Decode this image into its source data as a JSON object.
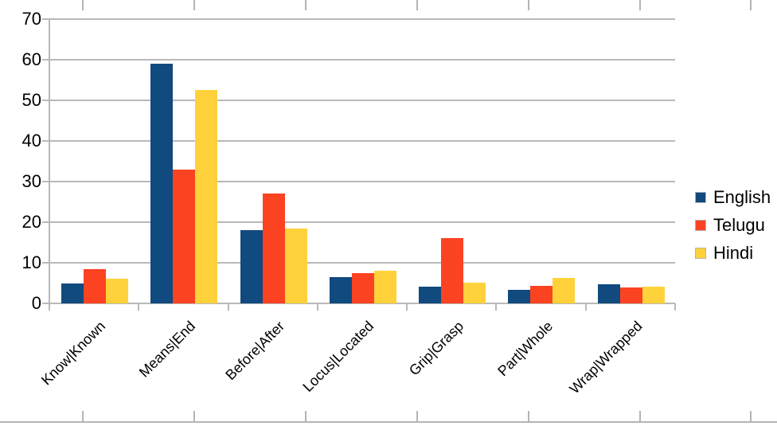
{
  "chart_data": {
    "type": "bar",
    "title": "",
    "xlabel": "",
    "ylabel": "",
    "categories": [
      "Know|Known",
      "Means|End",
      "Before|After",
      "Locus|Located",
      "Grip|Grasp",
      "Part|Whole",
      "Wrap|Wrapped"
    ],
    "series": [
      {
        "name": "English",
        "color": "#114A7E",
        "values": [
          5,
          59,
          18,
          6.5,
          4.2,
          3.4,
          4.8
        ]
      },
      {
        "name": "Telugu",
        "color": "#FB4322",
        "values": [
          8.5,
          33,
          27,
          7.5,
          16,
          4.4,
          4
        ]
      },
      {
        "name": "Hindi",
        "color": "#FFD23B",
        "values": [
          6,
          52.5,
          18.5,
          8,
          5.1,
          6.3,
          4.2
        ]
      }
    ],
    "ylim": [
      0,
      70
    ],
    "yticks": [
      0,
      10,
      20,
      30,
      40,
      50,
      60,
      70
    ],
    "grid": true,
    "legend_position": "right",
    "legend_entries": [
      "English",
      "Telugu",
      "Hindi"
    ],
    "axis_color": "#b9b9b9",
    "text_color": "#000000"
  },
  "spreadsheet": {
    "cell_border_color": "#b4b4b4"
  }
}
